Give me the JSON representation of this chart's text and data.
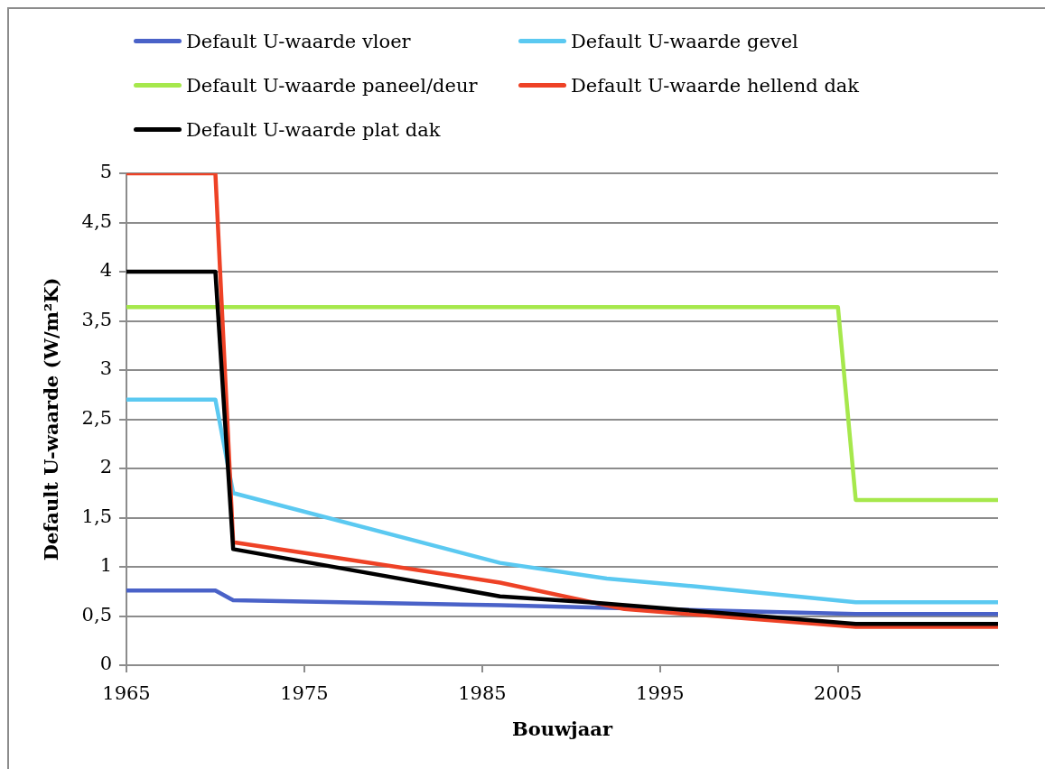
{
  "chart_data": {
    "type": "line",
    "xlabel": "Bouwjaar",
    "ylabel": "Default U-waarde (W/m²K)",
    "series": [
      {
        "name": "Default U-waarde vloer",
        "color": "#4a62c8",
        "x": [
          1965,
          1970,
          1971,
          1986,
          2006,
          2014
        ],
        "values": [
          0.76,
          0.76,
          0.66,
          0.61,
          0.52,
          0.52
        ]
      },
      {
        "name": "Default U-waarde gevel",
        "color": "#5bc9f1",
        "x": [
          1965,
          1970,
          1971,
          1986,
          1992,
          1997,
          2006,
          2014
        ],
        "values": [
          2.7,
          2.7,
          1.75,
          1.04,
          0.88,
          0.8,
          0.64,
          0.64
        ]
      },
      {
        "name": "Default U-waarde paneel/deur",
        "color": "#a6e84c",
        "x": [
          1965,
          2005,
          2006,
          2014
        ],
        "values": [
          3.64,
          3.64,
          1.68,
          1.68
        ]
      },
      {
        "name": "Default U-waarde hellend dak",
        "color": "#ee4226",
        "x": [
          1965,
          1970,
          1971,
          1986,
          1993,
          2006,
          2014
        ],
        "values": [
          5,
          5,
          1.25,
          0.84,
          0.57,
          0.39,
          0.39
        ]
      },
      {
        "name": "Default U-waarde plat dak",
        "color": "#000000",
        "x": [
          1965,
          1970,
          1971,
          1986,
          1991,
          2006,
          2014
        ],
        "values": [
          4,
          4,
          1.18,
          0.7,
          0.64,
          0.42,
          0.42
        ]
      }
    ],
    "xlim": [
      1965,
      2014
    ],
    "xticks": [
      1965,
      1975,
      1985,
      1995,
      2005
    ],
    "ylim": [
      0,
      5
    ],
    "yticks": [
      0,
      {
        "value": 0.5,
        "label": "0,5"
      },
      1,
      {
        "value": 1.5,
        "label": "1,5"
      },
      2,
      {
        "value": 2.5,
        "label": "2,5"
      },
      3,
      {
        "value": 3.5,
        "label": "3,5"
      },
      4,
      {
        "value": 4.5,
        "label": "4,5"
      },
      5
    ],
    "grid": "y",
    "legend": "top",
    "marker": "none",
    "line_style": "solid"
  }
}
